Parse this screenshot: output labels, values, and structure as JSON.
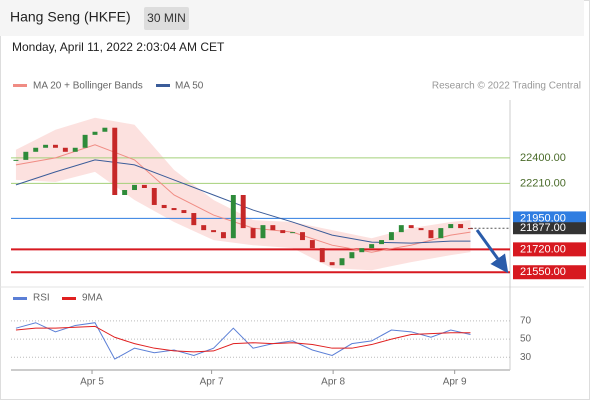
{
  "header": {
    "title": "Hang Seng (HKFE)",
    "interval": "30 MIN",
    "datetime": "Monday, April 11, 2022 2:03:04 AM CET"
  },
  "chart_data": [
    {
      "type": "candlestick",
      "source": "Research © 2022 Trading Central",
      "up_color": "#2e8b3a",
      "down_color": "#c62828",
      "close": [
        22385,
        22445,
        22475,
        22497,
        22475,
        22445,
        22475,
        22571,
        22594,
        22624,
        22124,
        22161,
        22199,
        22176,
        22050,
        22027,
        22012,
        21990,
        21900,
        21863,
        21848,
        21803,
        22124,
        21878,
        21803,
        21900,
        21863,
        21841,
        21848,
        21789,
        21729,
        21625,
        21602,
        21654,
        21699,
        21729,
        21759,
        21789,
        21848,
        21900,
        21878,
        21863,
        21803,
        21878,
        21908,
        21878,
        21877
      ],
      "series": [
        {
          "name": "MA 20 + Bollinger Bands",
          "color": "#f08c84",
          "band_color": "#fbd9d7",
          "x": [
            0,
            4,
            8,
            12,
            16,
            20,
            24,
            28,
            32,
            36,
            40,
            44,
            46
          ],
          "values": [
            22348,
            22400,
            22497,
            22385,
            22124,
            21975,
            21878,
            21848,
            21751,
            21699,
            21751,
            21826,
            21848
          ],
          "upper": [
            22460,
            22609,
            22698,
            22646,
            22311,
            22087,
            21938,
            21923,
            21863,
            21803,
            21878,
            21923,
            21938
          ],
          "lower": [
            22236,
            22221,
            22296,
            22087,
            21923,
            21789,
            21751,
            21729,
            21580,
            21565,
            21625,
            21677,
            21699
          ]
        },
        {
          "name": "MA 50",
          "color": "#3b5c99",
          "x": [
            0,
            4,
            8,
            12,
            16,
            20,
            24,
            28,
            32,
            36,
            40,
            44,
            46
          ],
          "values": [
            22199,
            22296,
            22385,
            22348,
            22236,
            22124,
            22012,
            21923,
            21826,
            21774,
            21766,
            21781,
            21781
          ]
        }
      ],
      "levels": [
        {
          "value": 22400,
          "label": "22400.00",
          "color": "#a5d07a",
          "filled": false
        },
        {
          "value": 22210,
          "label": "22210.00",
          "color": "#a5d07a",
          "filled": false
        },
        {
          "value": 21950,
          "label": "21950.00",
          "color": "#2f7de1",
          "filled": true
        },
        {
          "value": 21720,
          "label": "21720.00",
          "color": "#d71920",
          "filled": true
        },
        {
          "value": 21550,
          "label": "21550.00",
          "color": "#d71920",
          "filled": true
        }
      ],
      "current": {
        "value": 21877,
        "label": "21877.00",
        "color": "#333333"
      },
      "xlim": [
        -0.5,
        50
      ],
      "ylim": [
        21470,
        22830
      ]
    },
    {
      "type": "line",
      "series": [
        {
          "name": "RSI",
          "color": "#5b7fd6",
          "x": [
            0,
            2,
            4,
            6,
            8,
            10,
            12,
            14,
            16,
            18,
            20,
            22,
            24,
            26,
            28,
            30,
            32,
            34,
            36,
            38,
            40,
            42,
            44,
            46
          ],
          "values": [
            62,
            68,
            58,
            65,
            68,
            28,
            40,
            35,
            38,
            32,
            40,
            62,
            40,
            45,
            48,
            38,
            32,
            45,
            48,
            60,
            58,
            52,
            60,
            55
          ]
        },
        {
          "name": "9MA",
          "color": "#e02020",
          "x": [
            0,
            2,
            4,
            6,
            8,
            10,
            12,
            14,
            16,
            18,
            20,
            22,
            24,
            26,
            28,
            30,
            32,
            34,
            36,
            38,
            40,
            42,
            44,
            46
          ],
          "values": [
            60,
            62,
            62,
            63,
            64,
            52,
            45,
            40,
            37,
            36,
            37,
            45,
            46,
            45,
            46,
            44,
            40,
            40,
            44,
            50,
            55,
            56,
            57,
            57
          ]
        }
      ],
      "xlim": [
        -0.5,
        50
      ],
      "ylim": [
        16,
        82
      ],
      "yticks": [
        30,
        50,
        70
      ],
      "xticks": [
        {
          "value": 7.7,
          "label": "Apr 5"
        },
        {
          "value": 19.8,
          "label": "Apr 7"
        },
        {
          "value": 32.1,
          "label": "Apr 8"
        },
        {
          "value": 44.4,
          "label": "Apr 9"
        }
      ]
    }
  ]
}
